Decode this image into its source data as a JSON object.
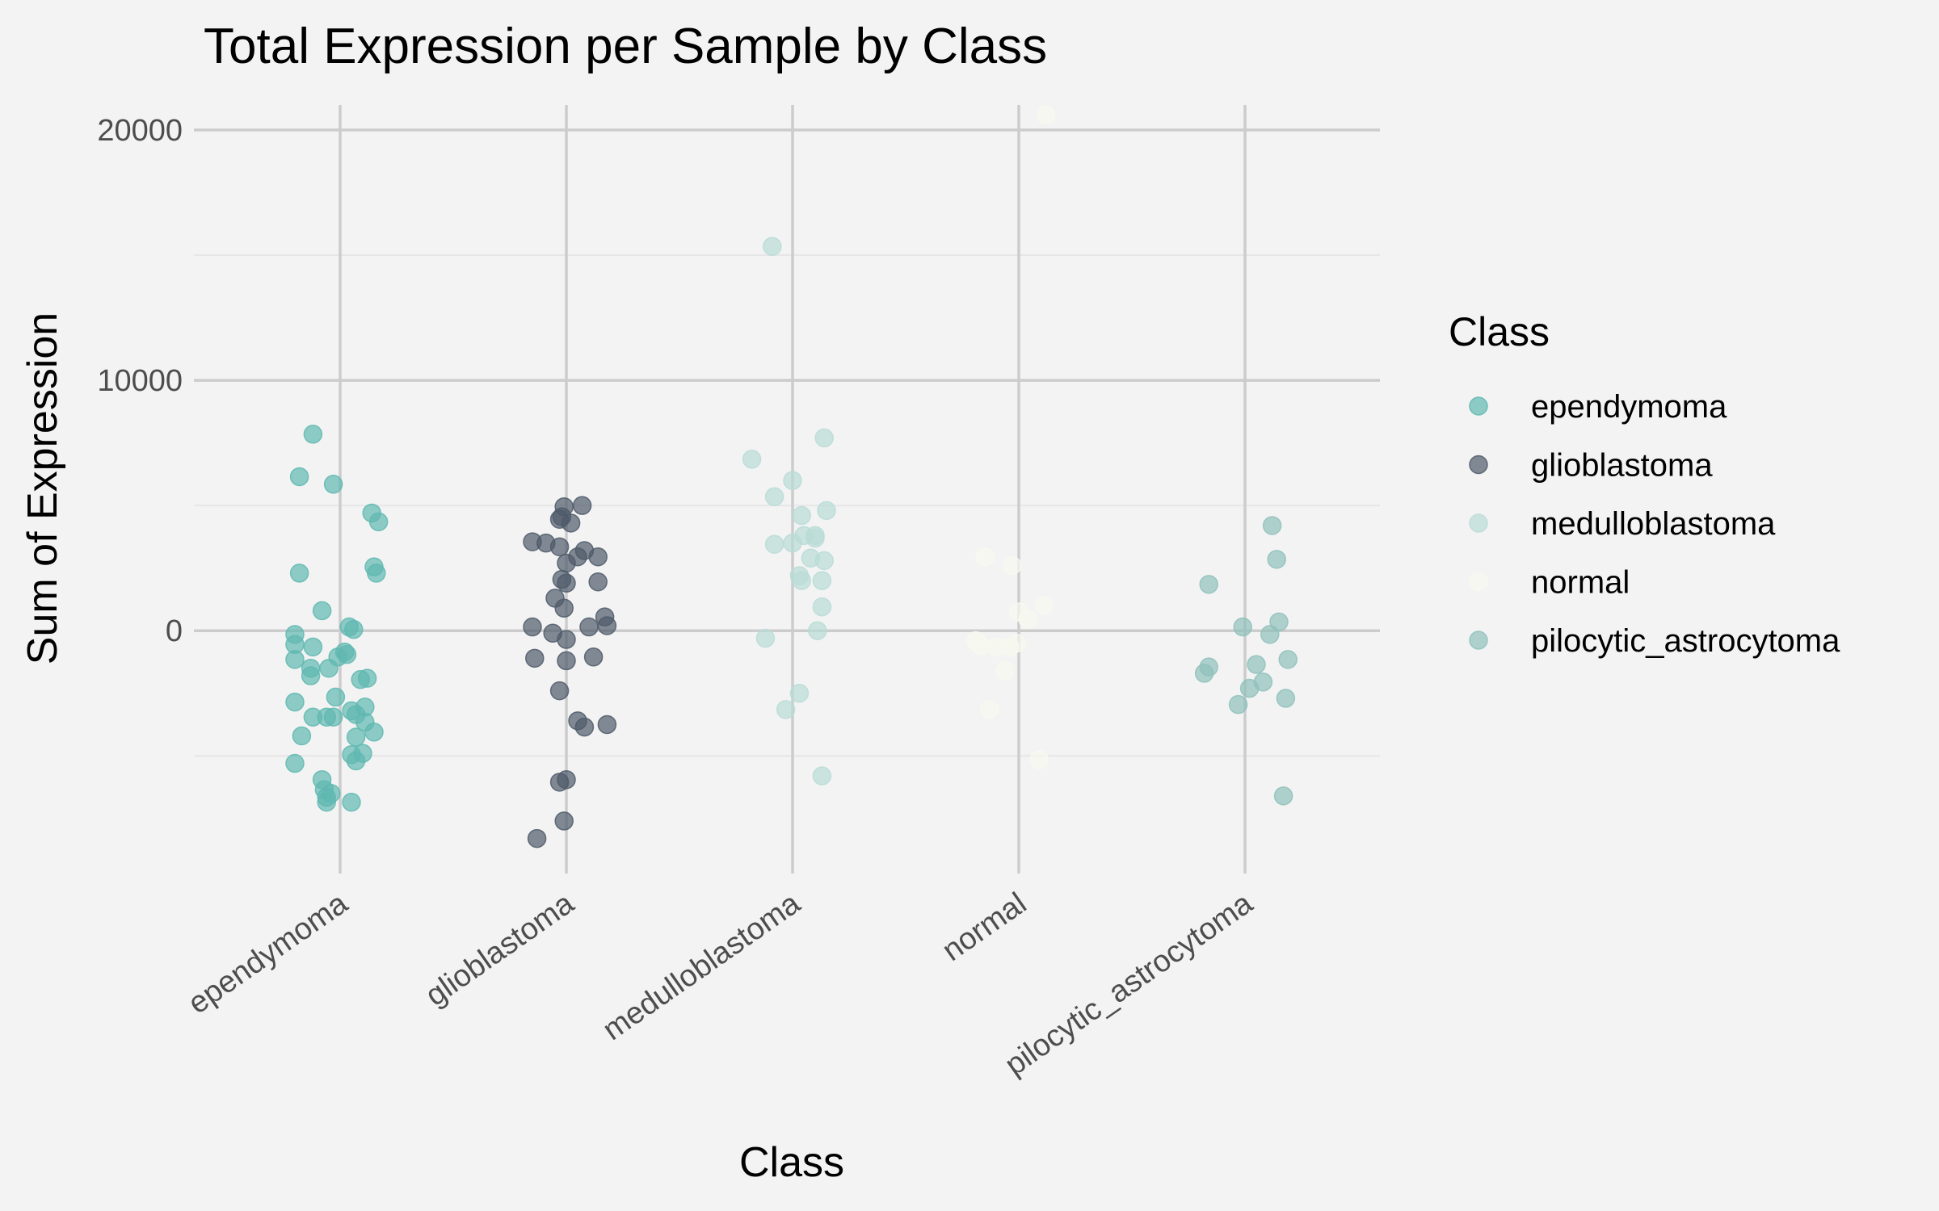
{
  "chart_data": {
    "type": "scatter",
    "title": "Total Expression per Sample by Class",
    "xlabel": "Class",
    "ylabel": "Sum of Expression",
    "categories": [
      "ependymoma",
      "glioblastoma",
      "medulloblastoma",
      "normal",
      "pilocytic_astrocytoma"
    ],
    "ylim": [
      -9700,
      21000
    ],
    "y_ticks": [
      0,
      10000,
      20000
    ],
    "y_tick_labels": [
      "0",
      "10000",
      "20000"
    ],
    "y_minor_ticks": [
      -5000,
      5000,
      15000
    ],
    "grid": true,
    "legend": {
      "title": "Class",
      "position": "right"
    },
    "series": [
      {
        "name": "ependymoma",
        "color": "#5fb8b0",
        "points": [
          [
            -0.12,
            7850
          ],
          [
            -0.18,
            6150
          ],
          [
            -0.03,
            5850
          ],
          [
            0.14,
            4700
          ],
          [
            0.17,
            4350
          ],
          [
            -0.18,
            2300
          ],
          [
            0.15,
            2550
          ],
          [
            0.16,
            2300
          ],
          [
            -0.08,
            800
          ],
          [
            0.04,
            150
          ],
          [
            0.06,
            50
          ],
          [
            -0.2,
            -150
          ],
          [
            -0.2,
            -550
          ],
          [
            -0.12,
            -650
          ],
          [
            0.02,
            -850
          ],
          [
            0.03,
            -950
          ],
          [
            -0.01,
            -1050
          ],
          [
            -0.2,
            -1150
          ],
          [
            -0.13,
            -1500
          ],
          [
            -0.05,
            -1500
          ],
          [
            -0.13,
            -1800
          ],
          [
            0.09,
            -1950
          ],
          [
            0.12,
            -1900
          ],
          [
            -0.02,
            -2650
          ],
          [
            -0.2,
            -2850
          ],
          [
            0.11,
            -3050
          ],
          [
            0.05,
            -3200
          ],
          [
            0.07,
            -3350
          ],
          [
            -0.12,
            -3450
          ],
          [
            -0.06,
            -3450
          ],
          [
            -0.03,
            -3450
          ],
          [
            0.11,
            -3650
          ],
          [
            0.15,
            -4050
          ],
          [
            -0.17,
            -4200
          ],
          [
            0.07,
            -4250
          ],
          [
            0.05,
            -4950
          ],
          [
            0.1,
            -4900
          ],
          [
            0.07,
            -5200
          ],
          [
            -0.2,
            -5300
          ],
          [
            -0.08,
            -5950
          ],
          [
            -0.07,
            -6350
          ],
          [
            -0.04,
            -6500
          ],
          [
            -0.06,
            -6650
          ],
          [
            -0.06,
            -6850
          ],
          [
            0.05,
            -6850
          ]
        ]
      },
      {
        "name": "glioblastoma",
        "color": "#4e5a69",
        "points": [
          [
            -0.01,
            4950
          ],
          [
            0.07,
            5000
          ],
          [
            -0.02,
            4550
          ],
          [
            -0.03,
            4450
          ],
          [
            0.02,
            4300
          ],
          [
            -0.15,
            3550
          ],
          [
            -0.09,
            3500
          ],
          [
            -0.03,
            3350
          ],
          [
            0.08,
            3200
          ],
          [
            0.05,
            2950
          ],
          [
            0.14,
            2950
          ],
          [
            0.0,
            2700
          ],
          [
            -0.02,
            2050
          ],
          [
            0.0,
            1900
          ],
          [
            0.14,
            1950
          ],
          [
            -0.05,
            1300
          ],
          [
            -0.01,
            900
          ],
          [
            0.17,
            550
          ],
          [
            -0.15,
            150
          ],
          [
            0.18,
            200
          ],
          [
            0.1,
            150
          ],
          [
            -0.06,
            -100
          ],
          [
            0.0,
            -350
          ],
          [
            -0.14,
            -1100
          ],
          [
            0.0,
            -1200
          ],
          [
            0.12,
            -1050
          ],
          [
            -0.03,
            -2400
          ],
          [
            0.05,
            -3600
          ],
          [
            0.08,
            -3850
          ],
          [
            0.18,
            -3750
          ],
          [
            0.0,
            -5950
          ],
          [
            -0.03,
            -6050
          ],
          [
            -0.01,
            -7600
          ],
          [
            -0.13,
            -8300
          ]
        ]
      },
      {
        "name": "medulloblastoma",
        "color": "#b9dcd6",
        "points": [
          [
            -0.09,
            15350
          ],
          [
            0.14,
            7700
          ],
          [
            -0.18,
            6850
          ],
          [
            0.0,
            6000
          ],
          [
            -0.08,
            5350
          ],
          [
            0.15,
            4800
          ],
          [
            0.04,
            4600
          ],
          [
            0.1,
            3800
          ],
          [
            0.05,
            3800
          ],
          [
            0.1,
            3700
          ],
          [
            -0.08,
            3450
          ],
          [
            0.0,
            3500
          ],
          [
            0.08,
            2900
          ],
          [
            0.14,
            2800
          ],
          [
            0.03,
            2200
          ],
          [
            0.04,
            2000
          ],
          [
            0.13,
            2000
          ],
          [
            0.13,
            950
          ],
          [
            0.11,
            0
          ],
          [
            -0.12,
            -300
          ],
          [
            0.03,
            -2500
          ],
          [
            -0.03,
            -3150
          ],
          [
            0.13,
            -5800
          ]
        ]
      },
      {
        "name": "normal",
        "color": "#f7f8ee",
        "points": [
          [
            0.12,
            20600
          ],
          [
            -0.15,
            2950
          ],
          [
            -0.03,
            2600
          ],
          [
            0.11,
            1000
          ],
          [
            0.0,
            750
          ],
          [
            0.04,
            450
          ],
          [
            -0.19,
            -400
          ],
          [
            -0.17,
            -600
          ],
          [
            -0.1,
            -650
          ],
          [
            -0.04,
            -650
          ],
          [
            -0.01,
            -500
          ],
          [
            -0.06,
            -1600
          ],
          [
            -0.13,
            -3150
          ],
          [
            0.09,
            -5150
          ]
        ]
      },
      {
        "name": "pilocytic_astrocytoma",
        "color": "#8fc1bb",
        "points": [
          [
            0.12,
            4200
          ],
          [
            0.14,
            2850
          ],
          [
            -0.16,
            1850
          ],
          [
            0.15,
            350
          ],
          [
            -0.01,
            150
          ],
          [
            0.11,
            -150
          ],
          [
            0.19,
            -1150
          ],
          [
            0.05,
            -1350
          ],
          [
            -0.16,
            -1450
          ],
          [
            -0.18,
            -1700
          ],
          [
            0.08,
            -2050
          ],
          [
            0.02,
            -2300
          ],
          [
            0.18,
            -2700
          ],
          [
            -0.03,
            -2950
          ],
          [
            0.17,
            -6600
          ]
        ]
      }
    ]
  }
}
